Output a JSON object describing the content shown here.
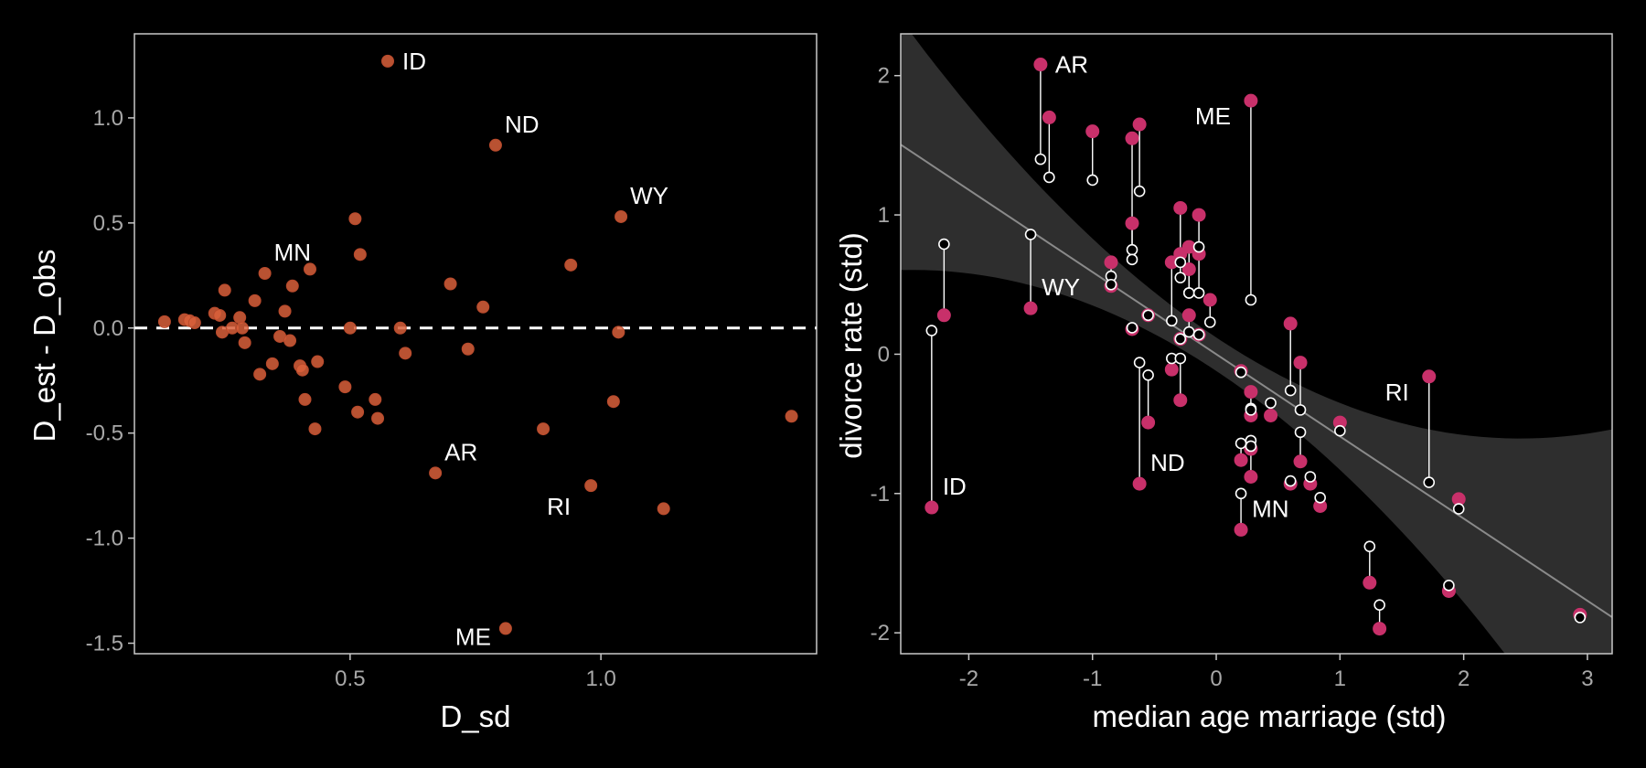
{
  "chart_data": [
    {
      "type": "scatter",
      "xlabel": "D_sd",
      "ylabel": "D_est - D_obs",
      "xlim": [
        0.07,
        1.43
      ],
      "ylim": [
        -1.55,
        1.4
      ],
      "xticks": [
        0.5,
        1.0
      ],
      "xtick_labels": [
        "0.5",
        "1.0"
      ],
      "yticks": [
        -1.5,
        -1.0,
        -0.5,
        0.0,
        0.5,
        1.0
      ],
      "ytick_labels": [
        "-1.5",
        "-1.0",
        "-0.5",
        "0.0",
        "0.5",
        "1.0"
      ],
      "reference_line": 0,
      "point_color": "#d9603b",
      "points": [
        {
          "x": 0.13,
          "y": 0.03
        },
        {
          "x": 0.17,
          "y": 0.04
        },
        {
          "x": 0.18,
          "y": 0.035
        },
        {
          "x": 0.19,
          "y": 0.025
        },
        {
          "x": 0.23,
          "y": 0.07
        },
        {
          "x": 0.24,
          "y": 0.06
        },
        {
          "x": 0.245,
          "y": -0.02
        },
        {
          "x": 0.25,
          "y": 0.18
        },
        {
          "x": 0.265,
          "y": 0.0
        },
        {
          "x": 0.28,
          "y": 0.05
        },
        {
          "x": 0.29,
          "y": -0.07
        },
        {
          "x": 0.285,
          "y": 0.0
        },
        {
          "x": 0.31,
          "y": 0.13
        },
        {
          "x": 0.32,
          "y": -0.22
        },
        {
          "x": 0.33,
          "y": 0.26
        },
        {
          "x": 0.345,
          "y": -0.17
        },
        {
          "x": 0.36,
          "y": -0.04
        },
        {
          "x": 0.37,
          "y": 0.08
        },
        {
          "x": 0.38,
          "y": -0.06
        },
        {
          "x": 0.385,
          "y": 0.2
        },
        {
          "x": 0.4,
          "y": -0.18
        },
        {
          "x": 0.405,
          "y": -0.2
        },
        {
          "x": 0.41,
          "y": -0.34
        },
        {
          "x": 0.42,
          "y": 0.28
        },
        {
          "x": 0.43,
          "y": -0.48
        },
        {
          "x": 0.435,
          "y": -0.16
        },
        {
          "x": 0.49,
          "y": -0.28
        },
        {
          "x": 0.5,
          "y": 0.0
        },
        {
          "x": 0.51,
          "y": 0.52
        },
        {
          "x": 0.515,
          "y": -0.4
        },
        {
          "x": 0.52,
          "y": 0.35
        },
        {
          "x": 0.55,
          "y": -0.34
        },
        {
          "x": 0.555,
          "y": -0.43
        },
        {
          "x": 0.575,
          "y": 1.27,
          "label": "ID"
        },
        {
          "x": 0.6,
          "y": 0.0
        },
        {
          "x": 0.61,
          "y": -0.12
        },
        {
          "x": 0.67,
          "y": -0.69,
          "label": "AR"
        },
        {
          "x": 0.7,
          "y": 0.21
        },
        {
          "x": 0.735,
          "y": -0.1
        },
        {
          "x": 0.765,
          "y": 0.1
        },
        {
          "x": 0.79,
          "y": 0.87,
          "label": "ND"
        },
        {
          "x": 0.81,
          "y": -1.43,
          "label": "ME"
        },
        {
          "x": 0.885,
          "y": -0.48
        },
        {
          "x": 0.94,
          "y": 0.3
        },
        {
          "x": 0.98,
          "y": -0.75,
          "label": "RI"
        },
        {
          "x": 1.025,
          "y": -0.35
        },
        {
          "x": 1.035,
          "y": -0.02
        },
        {
          "x": 1.04,
          "y": 0.53,
          "label": "WY"
        },
        {
          "x": 1.125,
          "y": -0.86
        },
        {
          "x": 1.38,
          "y": -0.42
        }
      ],
      "labels": [
        {
          "text": "ID",
          "x": 0.575,
          "y": 1.27,
          "pos": "right"
        },
        {
          "text": "ND",
          "x": 0.79,
          "y": 0.87,
          "pos": "upper-right"
        },
        {
          "text": "WY",
          "x": 1.04,
          "y": 0.53,
          "pos": "upper-right"
        },
        {
          "text": "MN",
          "x": 0.33,
          "y": 0.26,
          "pos": "upper-right"
        },
        {
          "text": "AR",
          "x": 0.67,
          "y": -0.69,
          "pos": "upper-right"
        },
        {
          "text": "RI",
          "x": 0.98,
          "y": -0.75,
          "pos": "lower-left"
        },
        {
          "text": "ME",
          "x": 0.81,
          "y": -1.43,
          "pos": "left"
        }
      ]
    },
    {
      "type": "scatter",
      "xlabel": "median age marriage (std)",
      "ylabel": "divorce rate (std)",
      "xlim": [
        -2.55,
        3.2
      ],
      "ylim": [
        -2.15,
        2.3
      ],
      "xticks": [
        -2,
        -1,
        0,
        1,
        2,
        3
      ],
      "xtick_labels": [
        "-2",
        "-1",
        "0",
        "1",
        "2",
        "3"
      ],
      "yticks": [
        -2,
        -1,
        0,
        1,
        2
      ],
      "ytick_labels": [
        "-2",
        "-1",
        "0",
        "1",
        "2"
      ],
      "observed_color": "#c8306a",
      "regression": {
        "intercept": 0.0,
        "slope": -0.59
      },
      "band_halfwidth": {
        "center": 0.0,
        "base": 0.12,
        "scale": 0.12
      },
      "points": [
        {
          "x": -2.3,
          "obs": -1.1,
          "est": 0.17,
          "label": "ID"
        },
        {
          "x": -2.2,
          "obs": 0.28,
          "est": 0.79
        },
        {
          "x": -1.42,
          "obs": 2.08,
          "est": 1.4,
          "label": "AR"
        },
        {
          "x": -1.35,
          "obs": 1.7,
          "est": 1.27
        },
        {
          "x": -1.5,
          "obs": 0.33,
          "est": 0.86,
          "label": "WY"
        },
        {
          "x": -1.0,
          "obs": 1.6,
          "est": 1.25
        },
        {
          "x": -0.68,
          "obs": 1.55,
          "est": 0.75
        },
        {
          "x": -0.62,
          "obs": 1.65,
          "est": 1.17
        },
        {
          "x": -0.68,
          "obs": 0.94,
          "est": 0.68
        },
        {
          "x": -0.85,
          "obs": 0.66,
          "est": 0.56
        },
        {
          "x": -0.85,
          "obs": 0.49,
          "est": 0.5
        },
        {
          "x": -0.68,
          "obs": 0.18,
          "est": 0.19
        },
        {
          "x": -0.62,
          "obs": -0.93,
          "est": -0.06,
          "label": "ND"
        },
        {
          "x": -0.55,
          "obs": -0.49,
          "est": -0.15
        },
        {
          "x": -0.55,
          "obs": 0.28,
          "est": 0.28
        },
        {
          "x": -0.36,
          "obs": 0.66,
          "est": 0.24
        },
        {
          "x": -0.36,
          "obs": -0.11,
          "est": -0.03
        },
        {
          "x": -0.29,
          "obs": 1.05,
          "est": 0.66
        },
        {
          "x": -0.29,
          "obs": 0.72,
          "est": 0.55
        },
        {
          "x": -0.29,
          "obs": 0.11,
          "est": 0.11
        },
        {
          "x": -0.29,
          "obs": -0.33,
          "est": -0.03
        },
        {
          "x": -0.22,
          "obs": 0.77,
          "est": 0.44
        },
        {
          "x": -0.22,
          "obs": 0.61,
          "est": 0.44
        },
        {
          "x": -0.22,
          "obs": 0.28,
          "est": 0.16
        },
        {
          "x": -0.14,
          "obs": 1.0,
          "est": 0.77
        },
        {
          "x": -0.14,
          "obs": 0.72,
          "est": 0.44
        },
        {
          "x": -0.14,
          "obs": 0.14,
          "est": 0.14
        },
        {
          "x": -0.05,
          "obs": 0.39,
          "est": 0.23
        },
        {
          "x": 0.2,
          "obs": -0.76,
          "est": -0.64
        },
        {
          "x": 0.2,
          "obs": -1.26,
          "est": -1.0,
          "label": "MN"
        },
        {
          "x": 0.2,
          "obs": -0.12,
          "est": -0.13
        },
        {
          "x": 0.28,
          "obs": 1.82,
          "est": 0.39,
          "label": "ME"
        },
        {
          "x": 0.28,
          "obs": -0.27,
          "est": -0.39
        },
        {
          "x": 0.28,
          "obs": -0.44,
          "est": -0.4
        },
        {
          "x": 0.28,
          "obs": -0.68,
          "est": -0.62
        },
        {
          "x": 0.28,
          "obs": -0.88,
          "est": -0.66
        },
        {
          "x": 0.44,
          "obs": -0.44,
          "est": -0.35
        },
        {
          "x": 0.6,
          "obs": 0.22,
          "est": -0.26
        },
        {
          "x": 0.6,
          "obs": -0.93,
          "est": -0.91
        },
        {
          "x": 0.68,
          "obs": -0.06,
          "est": -0.4
        },
        {
          "x": 0.68,
          "obs": -0.77,
          "est": -0.56
        },
        {
          "x": 0.76,
          "obs": -0.93,
          "est": -0.88
        },
        {
          "x": 0.84,
          "obs": -1.09,
          "est": -1.03
        },
        {
          "x": 1.0,
          "obs": -0.49,
          "est": -0.55
        },
        {
          "x": 1.24,
          "obs": -1.64,
          "est": -1.38
        },
        {
          "x": 1.32,
          "obs": -1.97,
          "est": -1.8
        },
        {
          "x": 1.72,
          "obs": -0.16,
          "est": -0.92,
          "label": "RI"
        },
        {
          "x": 1.88,
          "obs": -1.7,
          "est": -1.66
        },
        {
          "x": 1.96,
          "obs": -1.04,
          "est": -1.11
        },
        {
          "x": 2.94,
          "obs": -1.87,
          "est": -1.89
        }
      ],
      "labels": [
        {
          "text": "ID",
          "x": -2.3,
          "y": -1.1,
          "pos": "upper-right"
        },
        {
          "text": "AR",
          "x": -1.42,
          "y": 2.08,
          "pos": "right"
        },
        {
          "text": "WY",
          "x": -1.5,
          "y": 0.33,
          "pos": "upper-right"
        },
        {
          "text": "ME",
          "x": 0.28,
          "y": 1.82,
          "pos": "lower-left"
        },
        {
          "text": "ND",
          "x": -0.62,
          "y": -0.93,
          "pos": "upper-right"
        },
        {
          "text": "MN",
          "x": 0.2,
          "y": -1.26,
          "pos": "upper-right"
        },
        {
          "text": "RI",
          "x": 1.72,
          "y": -0.16,
          "pos": "lower-left"
        }
      ]
    }
  ]
}
